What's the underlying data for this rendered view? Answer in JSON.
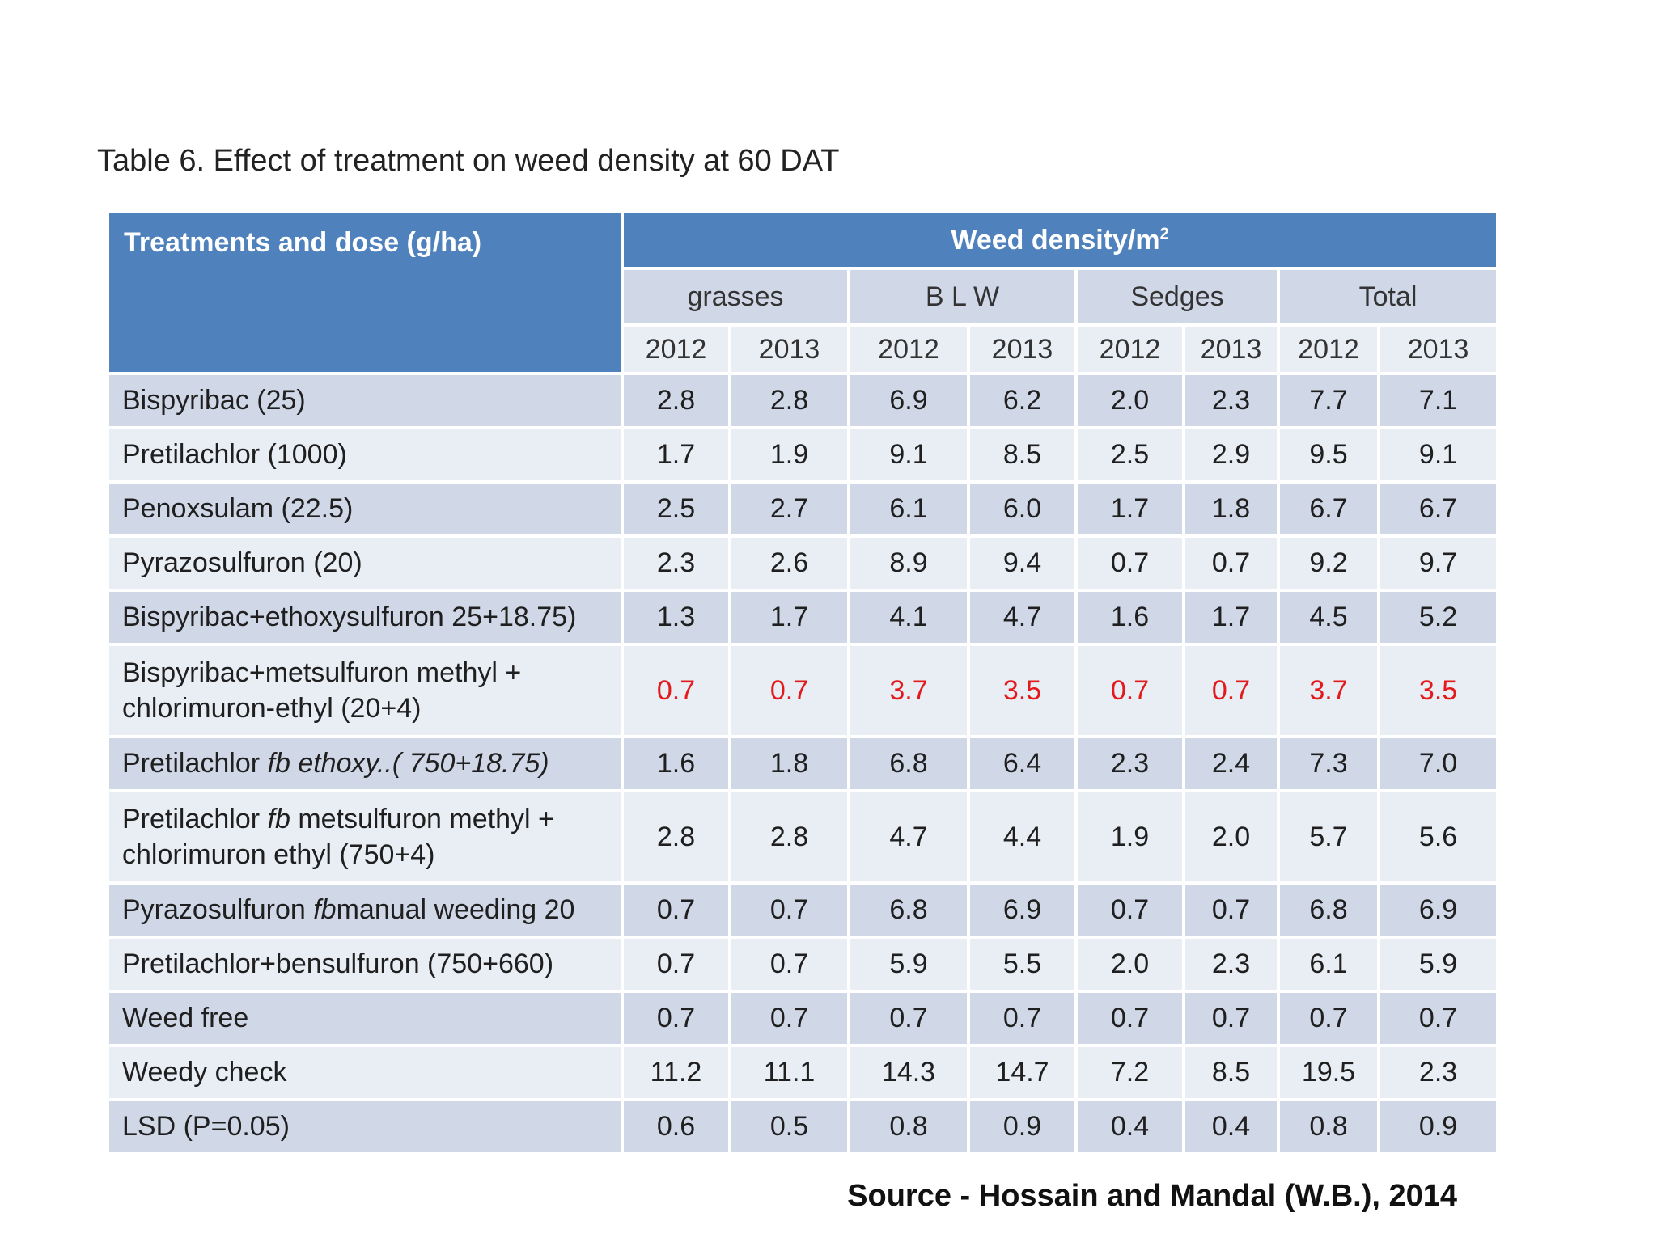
{
  "caption": "Table 6. Effect of treatment on weed density at 60 DAT",
  "header": {
    "treatment_col": "Treatments and dose  (g/ha)",
    "weed_density_main": "Weed density/m",
    "weed_density_sup": "2",
    "groups": [
      "grasses",
      "B L W",
      "Sedges",
      "Total"
    ],
    "years": [
      "2012",
      "2013",
      "2012",
      "2013",
      "2012",
      "2013",
      "2012",
      "2013"
    ]
  },
  "rows": [
    {
      "pre": "Bispyribac  (25)",
      "it": "",
      "post": "",
      "l2": "",
      "values": [
        "2.8",
        "2.8",
        "6.9",
        "6.2",
        "2.0",
        "2.3",
        "7.7",
        "7.1"
      ]
    },
    {
      "pre": "Pretilachlor (1000)",
      "it": "",
      "post": "",
      "l2": "",
      "values": [
        "1.7",
        "1.9",
        "9.1",
        "8.5",
        "2.5",
        "2.9",
        "9.5",
        "9.1"
      ]
    },
    {
      "pre": "Penoxsulam (22.5)",
      "it": "",
      "post": "",
      "l2": "",
      "values": [
        "2.5",
        "2.7",
        "6.1",
        "6.0",
        "1.7",
        "1.8",
        "6.7",
        "6.7"
      ]
    },
    {
      "pre": "Pyrazosulfuron  (20)",
      "it": "",
      "post": "",
      "l2": "",
      "values": [
        "2.3",
        "2.6",
        "8.9",
        "9.4",
        "0.7",
        "0.7",
        "9.2",
        "9.7"
      ]
    },
    {
      "pre": "Bispyribac+ethoxysulfuron 25+18.75)",
      "it": "",
      "post": "",
      "l2": "",
      "values": [
        "1.3",
        "1.7",
        "4.1",
        "4.7",
        "1.6",
        "1.7",
        "4.5",
        "5.2"
      ]
    },
    {
      "pre": "Bispyribac+metsulfuron methyl +",
      "it": "",
      "post": "",
      "l2": "chlorimuron-ethyl (20+4)",
      "values": [
        "0.7",
        "0.7",
        "3.7",
        "3.5",
        "0.7",
        "0.7",
        "3.7",
        "3.5"
      ]
    },
    {
      "pre": "Pretilachlor ",
      "it": "fb ethoxy..( 750+18.75)",
      "post": "",
      "l2": "",
      "values": [
        "1.6",
        "1.8",
        "6.8",
        "6.4",
        "2.3",
        "2.4",
        "7.3",
        "7.0"
      ]
    },
    {
      "pre": "Pretilachlor ",
      "it": "fb",
      "post": " metsulfuron methyl +",
      "l2": "chlorimuron ethyl (750+4)",
      "values": [
        "2.8",
        "2.8",
        "4.7",
        "4.4",
        "1.9",
        "2.0",
        "5.7",
        "5.6"
      ]
    },
    {
      "pre": "Pyrazosulfuron ",
      "it": "fb",
      "post": "manual weeding 20",
      "l2": "",
      "values": [
        "0.7",
        "0.7",
        "6.8",
        "6.9",
        "0.7",
        "0.7",
        "6.8",
        "6.9"
      ]
    },
    {
      "pre": "Pretilachlor+bensulfuron (750+660)",
      "it": "",
      "post": "",
      "l2": "",
      "values": [
        "0.7",
        "0.7",
        "5.9",
        "5.5",
        "2.0",
        "2.3",
        "6.1",
        "5.9"
      ]
    },
    {
      "pre": "Weed free",
      "it": "",
      "post": "",
      "l2": "",
      "values": [
        "0.7",
        "0.7",
        "0.7",
        "0.7",
        "0.7",
        "0.7",
        "0.7",
        "0.7"
      ]
    },
    {
      "pre": "Weedy check",
      "it": "",
      "post": "",
      "l2": "",
      "values": [
        "11.2",
        "11.1",
        "14.3",
        "14.7",
        "7.2",
        "8.5",
        "19.5",
        "2.3"
      ]
    },
    {
      "pre": "LSD (P=0.05)",
      "it": "",
      "post": "",
      "l2": "",
      "values": [
        "0.6",
        "0.5",
        "0.8",
        "0.9",
        "0.4",
        "0.4",
        "0.8",
        "0.9"
      ]
    }
  ],
  "source": "Source - Hossain and Mandal (W.B.), 2014",
  "colors": {
    "header_blue": "#4f81bd",
    "row_dark": "#d0d8e8",
    "row_light": "#e9edf4",
    "highlight_red": "#e31a1c"
  }
}
